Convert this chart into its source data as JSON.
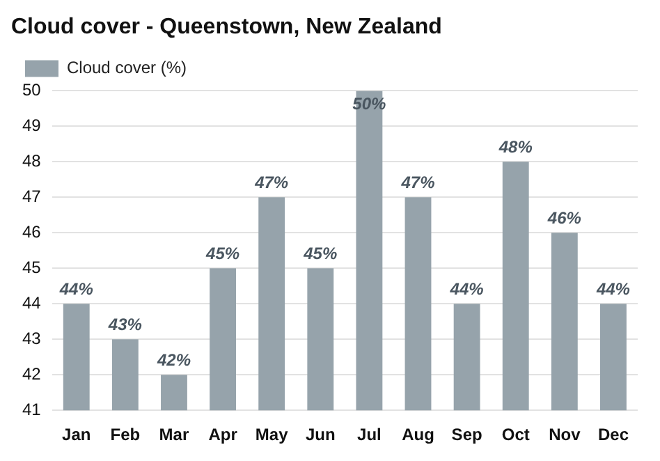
{
  "chart_data": {
    "type": "bar",
    "title": "Cloud cover - Queenstown, New Zealand",
    "categories": [
      "Jan",
      "Feb",
      "Mar",
      "Apr",
      "May",
      "Jun",
      "Jul",
      "Aug",
      "Sep",
      "Oct",
      "Nov",
      "Dec"
    ],
    "series": [
      {
        "name": "Cloud cover (%)",
        "color": "#96a3ab",
        "values": [
          44,
          43,
          42,
          45,
          47,
          45,
          50,
          47,
          44,
          48,
          46,
          44
        ],
        "value_labels": [
          "44%",
          "43%",
          "42%",
          "45%",
          "47%",
          "45%",
          "50%",
          "47%",
          "44%",
          "48%",
          "46%",
          "44%"
        ]
      }
    ],
    "ylim": [
      41,
      50
    ],
    "yticks": [
      41,
      42,
      43,
      44,
      45,
      46,
      47,
      48,
      49,
      50
    ],
    "grid": "y",
    "legend": "top left"
  }
}
